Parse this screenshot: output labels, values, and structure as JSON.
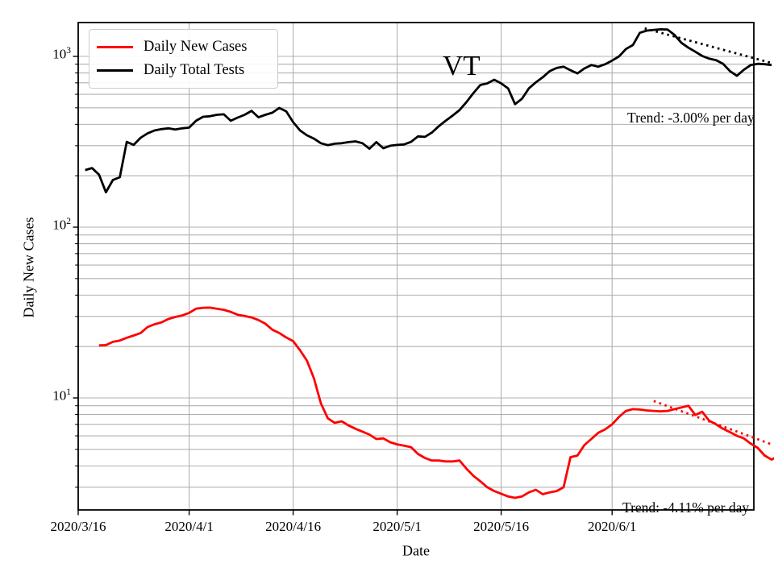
{
  "chart_data": {
    "type": "line",
    "state_annotation": "VT",
    "xlabel": "Date",
    "ylabel": "Daily New Cases",
    "y_scale": "log",
    "ylim": [
      2.2,
      1580
    ],
    "x_unit": "days since 2020/3/16",
    "x_days_range": [
      0,
      97.4
    ],
    "grid": true,
    "x_ticks": [
      {
        "label": "2020/3/16",
        "day": 0
      },
      {
        "label": "2020/4/1",
        "day": 16
      },
      {
        "label": "2020/4/16",
        "day": 31
      },
      {
        "label": "2020/5/1",
        "day": 46
      },
      {
        "label": "2020/5/16",
        "day": 61
      },
      {
        "label": "2020/6/1",
        "day": 77
      }
    ],
    "y_ticks": [
      {
        "base": "10",
        "exp": "1",
        "value": 10
      },
      {
        "base": "10",
        "exp": "2",
        "value": 100
      },
      {
        "base": "10",
        "exp": "3",
        "value": 1000
      }
    ],
    "series": [
      {
        "name": "Daily Total Tests",
        "color": "#000000",
        "style": "solid",
        "start_day": 1,
        "values": [
          216,
          222,
          203,
          160,
          189,
          196,
          316,
          303,
          334,
          354,
          368,
          375,
          379,
          373,
          379,
          383,
          420,
          443,
          446,
          455,
          458,
          420,
          438,
          455,
          480,
          440,
          455,
          468,
          499,
          477,
          412,
          368,
          345,
          330,
          310,
          302,
          308,
          310,
          315,
          318,
          310,
          288,
          315,
          290,
          300,
          303,
          305,
          316,
          340,
          338,
          358,
          390,
          420,
          450,
          485,
          540,
          610,
          680,
          695,
          730,
          695,
          650,
          525,
          565,
          650,
          705,
          755,
          820,
          855,
          870,
          830,
          795,
          850,
          890,
          870,
          900,
          945,
          1000,
          1105,
          1165,
          1375,
          1415,
          1430,
          1440,
          1435,
          1335,
          1200,
          1125,
          1065,
          1005,
          970,
          950,
          905,
          820,
          770,
          835,
          890,
          905,
          900,
          890
        ]
      },
      {
        "name": "Daily New Cases",
        "color": "#ff0000",
        "style": "solid",
        "start_day": 3,
        "values": [
          20.3,
          20.4,
          21.3,
          21.7,
          22.5,
          23.2,
          24,
          26,
          27,
          27.7,
          29,
          29.8,
          30.4,
          31.5,
          33.3,
          33.7,
          33.8,
          33.3,
          32.8,
          31.9,
          30.7,
          30.2,
          29.6,
          28.6,
          27.2,
          25.1,
          24,
          22.6,
          21.5,
          19,
          16.5,
          13,
          9.3,
          7.6,
          7.15,
          7.3,
          6.9,
          6.6,
          6.35,
          6.1,
          5.75,
          5.8,
          5.5,
          5.35,
          5.25,
          5.15,
          4.7,
          4.45,
          4.3,
          4.3,
          4.25,
          4.25,
          4.3,
          3.85,
          3.5,
          3.25,
          3,
          2.85,
          2.75,
          2.65,
          2.6,
          2.65,
          2.8,
          2.9,
          2.73,
          2.8,
          2.85,
          3,
          4.5,
          4.6,
          5.3,
          5.75,
          6.25,
          6.55,
          7,
          7.75,
          8.4,
          8.6,
          8.55,
          8.45,
          8.4,
          8.35,
          8.4,
          8.6,
          8.8,
          9,
          7.95,
          8.3,
          7.35,
          7,
          6.6,
          6.3,
          6,
          5.8,
          5.4,
          5.1,
          4.6,
          4.35,
          4.6
        ]
      },
      {
        "name": "Daily Total Tests trend",
        "color": "#000000",
        "style": "dotted",
        "points": [
          [
            81.7,
            1460
          ],
          [
            100,
            915
          ]
        ]
      },
      {
        "name": "Daily New Cases trend",
        "color": "#ff0000",
        "style": "dotted",
        "points": [
          [
            83,
            9.6
          ],
          [
            100,
            5.35
          ]
        ]
      }
    ],
    "legend": {
      "entries": [
        {
          "label": "Daily New Cases",
          "color": "#ff0000"
        },
        {
          "label": "Daily Total Tests",
          "color": "#000000"
        }
      ]
    },
    "annotations": {
      "state": "VT",
      "tests_trend": "Trend: -3.00% per day",
      "cases_trend": "Trend: -4.11% per day"
    },
    "colors": {
      "grid": "#b0b0b0",
      "axes": "#000000",
      "background": "#ffffff"
    }
  }
}
